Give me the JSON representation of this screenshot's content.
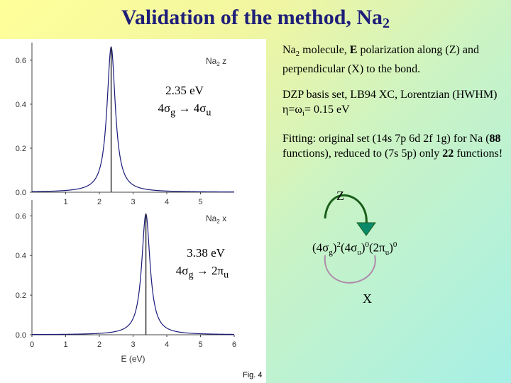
{
  "slide_title": {
    "text": "Validation of the method, Na",
    "sub": "2"
  },
  "text_blocks": {
    "p1_prefix": "Na",
    "p1_sub": "2",
    "p1_mid": " molecule, ",
    "p1_bold": "E",
    "p1_rest": " polarization along (Z) and perpendicular (X) to the bond.",
    "p2_a": "DZP basis set, LB94 XC, Lorentzian (HWHM) ",
    "p2_eta": "η=ω",
    "p2_sub": "i",
    "p2_b": "= 0.15 eV",
    "p3_a": "Fitting: original set (14s 7p 6d 2f 1g) for Na (",
    "p3_bold1": "88",
    "p3_b": " functions), reduced to (7s 5p) only ",
    "p3_bold2": "22",
    "p3_c": " functions!"
  },
  "orbital_diagram": {
    "z_label": "Z",
    "x_label": "X",
    "config_parts": [
      "(4σ",
      "g",
      ")",
      "2",
      "(4σ",
      "u",
      ")",
      "0",
      "(2π",
      "u",
      ")",
      "0"
    ],
    "arrow_colors": {
      "top": "#1a5f1a",
      "arrowhead": "#0a8a6a",
      "bottom": "#b08aaa"
    }
  },
  "panel_labels": {
    "top_energy": "2.35 eV",
    "top_transition": [
      "4σ",
      "g",
      " → 4σ",
      "u"
    ],
    "bottom_energy": "3.38 eV",
    "bottom_transition": [
      "4σ",
      "g",
      " → 2π",
      "u"
    ]
  },
  "chart_data": [
    {
      "type": "line",
      "title": "",
      "legend": [
        "Na",
        "2",
        " z"
      ],
      "xlabel": "",
      "ylabel": "",
      "xlim": [
        0,
        6.0
      ],
      "ylim": [
        0,
        0.68
      ],
      "yticks": [
        "0.0",
        "0.2",
        "0.4",
        "0.6"
      ],
      "xticks": [
        "1",
        "2",
        "3",
        "4",
        "5"
      ],
      "peak": {
        "x": 2.35,
        "y": 0.66,
        "width_hwhm": 0.15
      },
      "stick": {
        "x": 2.35,
        "y": 0.66
      },
      "colors": {
        "line": "#1a1a7a",
        "stick": "#333333"
      }
    },
    {
      "type": "line",
      "title": "",
      "legend": [
        "Na",
        "2",
        " x"
      ],
      "xlabel": "E (eV)",
      "ylabel": "",
      "xlim": [
        0,
        6.0
      ],
      "ylim": [
        0,
        0.68
      ],
      "yticks": [
        "0.0",
        "0.2",
        "0.4",
        "0.6"
      ],
      "xticks": [
        "0",
        "1",
        "2",
        "3",
        "4",
        "5",
        "6"
      ],
      "peak": {
        "x": 3.38,
        "y": 0.61,
        "width_hwhm": 0.15
      },
      "stick": {
        "x": 3.38,
        "y": 0.61
      },
      "colors": {
        "line": "#1a1a7a",
        "stick": "#333333"
      }
    }
  ],
  "figure_caption": "Fig. 4"
}
